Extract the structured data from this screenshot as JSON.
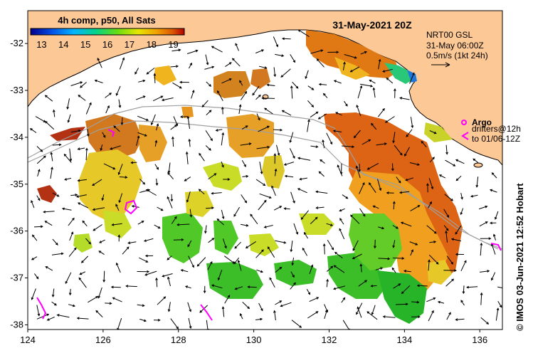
{
  "header": {
    "colorbar_title": "4h comp, p50, All Sats",
    "date_title": "31-May-2021 20Z"
  },
  "colorbar": {
    "ticks": [
      "13",
      "14",
      "15",
      "16",
      "17",
      "18",
      "19"
    ],
    "min": 12.5,
    "max": 19.5
  },
  "info_box": {
    "line1": "NRT00 GSL",
    "line2": "31-May 06:00Z",
    "line3": "0.5m/s (1kt 24h)"
  },
  "legend": {
    "argo_label": "Argo",
    "drifters_line1": "drifters@12h",
    "drifters_line2": "to 01/06-12Z"
  },
  "credit": "© IMOS 03-Jun-2021 12:52 Hobart",
  "axes": {
    "x_ticks": [
      "124",
      "126",
      "128",
      "130",
      "132",
      "134",
      "136"
    ],
    "y_ticks": [
      "-32",
      "-33",
      "-34",
      "-35",
      "-36",
      "-37",
      "-38"
    ],
    "lon_range": [
      124,
      136.6
    ],
    "lat_range": [
      -38.1,
      -31.3
    ]
  },
  "colors": {
    "land": "#fcc896",
    "ocean": "#ffffff",
    "argo": "#ff00ff",
    "coastline": "#000000"
  }
}
